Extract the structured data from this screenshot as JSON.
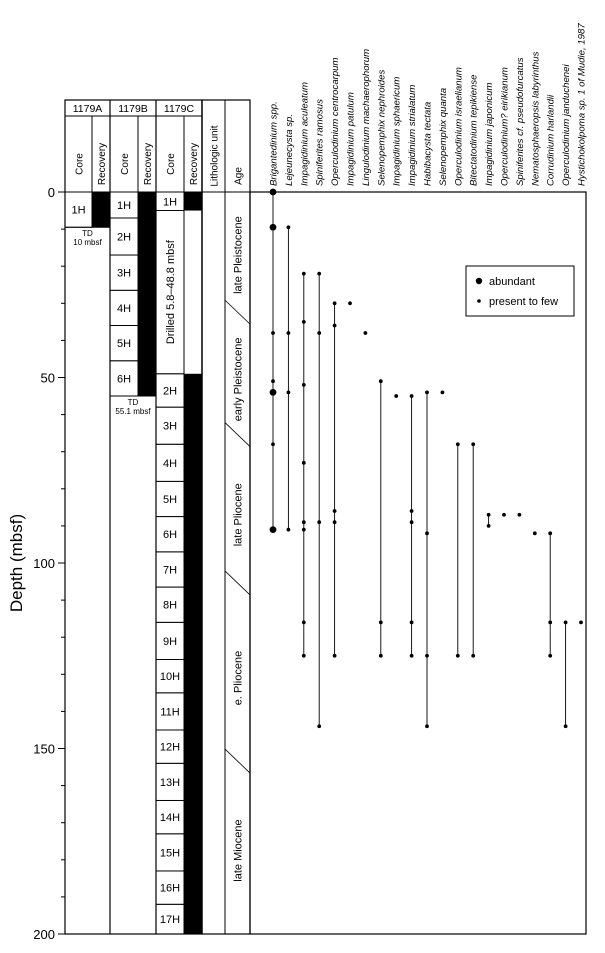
{
  "y_axis": {
    "label": "Depth (mbsf)",
    "ticks": [
      "0",
      "50",
      "100",
      "150",
      "200"
    ],
    "range": [
      0,
      200
    ]
  },
  "holes": {
    "a": {
      "name": "1179A",
      "core_header": "Core",
      "recovery_header": "Recovery",
      "cores": [
        {
          "label": "1H",
          "top": 0,
          "bottom": 9.5
        }
      ],
      "recovery": [
        {
          "top": 0,
          "bottom": 9.5
        }
      ],
      "td_label": "TD",
      "td_depth_label": "10 mbsf",
      "td": 9.5
    },
    "b": {
      "name": "1179B",
      "core_header": "Core",
      "recovery_header": "Recovery",
      "cores": [
        {
          "label": "1H",
          "top": 0,
          "bottom": 7
        },
        {
          "label": "2H",
          "top": 7,
          "bottom": 17
        },
        {
          "label": "3H",
          "top": 17,
          "bottom": 26.5
        },
        {
          "label": "4H",
          "top": 26.5,
          "bottom": 36
        },
        {
          "label": "5H",
          "top": 36,
          "bottom": 45.5
        },
        {
          "label": "6H",
          "top": 45.5,
          "bottom": 55
        }
      ],
      "recovery": [
        {
          "top": 0,
          "bottom": 55
        }
      ],
      "td_label": "TD",
      "td_depth_label": "55.1 mbsf",
      "td": 55
    },
    "c": {
      "name": "1179C",
      "core_header": "Core",
      "recovery_header": "Recovery",
      "drilled_label": "Drilled 5.8–48.8 mbsf",
      "cores": [
        {
          "label": "1H",
          "top": 0,
          "bottom": 5
        },
        {
          "label": "2H",
          "top": 49,
          "bottom": 58
        },
        {
          "label": "3H",
          "top": 58,
          "bottom": 68
        },
        {
          "label": "4H",
          "top": 68,
          "bottom": 78
        },
        {
          "label": "5H",
          "top": 78,
          "bottom": 87.5
        },
        {
          "label": "6H",
          "top": 87.5,
          "bottom": 97
        },
        {
          "label": "7H",
          "top": 97,
          "bottom": 106.5
        },
        {
          "label": "8H",
          "top": 106.5,
          "bottom": 116
        },
        {
          "label": "9H",
          "top": 116,
          "bottom": 126
        },
        {
          "label": "10H",
          "top": 126,
          "bottom": 135
        },
        {
          "label": "11H",
          "top": 135,
          "bottom": 145
        },
        {
          "label": "12H",
          "top": 145,
          "bottom": 154
        },
        {
          "label": "13H",
          "top": 154,
          "bottom": 164
        },
        {
          "label": "14H",
          "top": 164,
          "bottom": 173
        },
        {
          "label": "15H",
          "top": 173,
          "bottom": 183
        },
        {
          "label": "16H",
          "top": 183,
          "bottom": 192
        },
        {
          "label": "17H",
          "top": 192,
          "bottom": 200
        }
      ],
      "recovery": [
        {
          "top": 0,
          "bottom": 5
        },
        {
          "top": 49,
          "bottom": 200
        }
      ]
    }
  },
  "lithologic_unit": {
    "header": "Lithologic unit"
  },
  "age_column": {
    "header": "Age",
    "ages": [
      {
        "label": "late Pleistocene",
        "top": 0,
        "bottom": 34
      },
      {
        "label": "early Pleistocene",
        "top": 34,
        "bottom": 67
      },
      {
        "label": "late Pliocene",
        "top": 67,
        "bottom": 107
      },
      {
        "label": "e. Pliocene",
        "top": 107,
        "bottom": 155
      },
      {
        "label": "late Miocene",
        "top": 155,
        "bottom": 200
      }
    ]
  },
  "legend": {
    "abundant": "abundant",
    "present": "present to few"
  },
  "chart_data": {
    "type": "range-chart",
    "xlabel": "",
    "ylabel": "Depth (mbsf)",
    "ylim": [
      200,
      0
    ],
    "abundance_levels": [
      "abundant",
      "present to few"
    ],
    "taxa": [
      {
        "name": "Brigantedinium spp.",
        "points": [
          [
            0,
            "abundant"
          ],
          [
            9.5,
            "abundant"
          ],
          [
            38,
            "present to few"
          ],
          [
            51,
            "present to few"
          ],
          [
            54,
            "abundant"
          ],
          [
            68,
            "present to few"
          ],
          [
            91,
            "abundant"
          ]
        ]
      },
      {
        "name": "Lejeunecysta sp.",
        "points": [
          [
            9.5,
            "present to few"
          ],
          [
            38,
            "present to few"
          ],
          [
            54,
            "present to few"
          ],
          [
            91,
            "present to few"
          ]
        ]
      },
      {
        "name": "Impagidinium aculeatum",
        "points": [
          [
            22,
            "present to few"
          ],
          [
            35,
            "present to few"
          ],
          [
            52,
            "present to few"
          ],
          [
            73,
            "present to few"
          ],
          [
            89,
            "present to few"
          ],
          [
            91,
            "present to few"
          ],
          [
            116,
            "present to few"
          ],
          [
            125,
            "present to few"
          ]
        ]
      },
      {
        "name": "Spiniferites ramosus",
        "points": [
          [
            22,
            "present to few"
          ],
          [
            38,
            "present to few"
          ],
          [
            89,
            "present to few"
          ],
          [
            144,
            "present to few"
          ]
        ]
      },
      {
        "name": "Operculodinium centrocarpum",
        "points": [
          [
            30,
            "present to few"
          ],
          [
            36,
            "present to few"
          ],
          [
            86,
            "present to few"
          ],
          [
            89,
            "present to few"
          ],
          [
            125,
            "present to few"
          ]
        ]
      },
      {
        "name": "Impagidinium patulum",
        "points": [
          [
            30,
            "present to few"
          ]
        ]
      },
      {
        "name": "Lingulodinium machaerophorum",
        "points": [
          [
            38,
            "present to few"
          ]
        ]
      },
      {
        "name": "Selenopemphix nephroides",
        "points": [
          [
            51,
            "present to few"
          ],
          [
            116,
            "present to few"
          ],
          [
            125,
            "present to few"
          ]
        ]
      },
      {
        "name": "Impagidinium sphaericum",
        "points": [
          [
            55,
            "present to few"
          ]
        ]
      },
      {
        "name": "Impagidinium strialatum",
        "points": [
          [
            55,
            "present to few"
          ],
          [
            86,
            "present to few"
          ],
          [
            89,
            "present to few"
          ],
          [
            116,
            "present to few"
          ],
          [
            125,
            "present to few"
          ]
        ]
      },
      {
        "name": "Habibacysta tectata",
        "points": [
          [
            54,
            "present to few"
          ],
          [
            92,
            "present to few"
          ],
          [
            125,
            "present to few"
          ],
          [
            144,
            "present to few"
          ]
        ]
      },
      {
        "name": "Selenopemphix quanta",
        "points": [
          [
            54,
            "present to few"
          ]
        ]
      },
      {
        "name": "Operculodinium israelianum",
        "points": [
          [
            68,
            "present to few"
          ],
          [
            125,
            "present to few"
          ]
        ]
      },
      {
        "name": "Bitectatodinium tepikiense",
        "points": [
          [
            68,
            "present to few"
          ],
          [
            125,
            "present to few"
          ]
        ]
      },
      {
        "name": "Impagidinium japonicum",
        "points": [
          [
            87,
            "present to few"
          ],
          [
            90,
            "present to few"
          ]
        ]
      },
      {
        "name": "Operculodinium? eirikianum",
        "points": [
          [
            87,
            "present to few"
          ]
        ]
      },
      {
        "name": "Spiniferites cf. pseudofurcatus",
        "points": [
          [
            87,
            "present to few"
          ]
        ]
      },
      {
        "name": "Nematosphaeropsis labyrinthus",
        "points": [
          [
            92,
            "present to few"
          ]
        ]
      },
      {
        "name": "Corrudinium harlandii",
        "points": [
          [
            92,
            "present to few"
          ],
          [
            116,
            "present to few"
          ],
          [
            125,
            "present to few"
          ]
        ]
      },
      {
        "name": "Operculodinium janduchenei",
        "points": [
          [
            116,
            "present to few"
          ],
          [
            144,
            "present to few"
          ]
        ]
      },
      {
        "name": "Hystichokolpoma sp. 1 of Mudie, 1987",
        "points": [
          [
            116,
            "present to few"
          ]
        ]
      }
    ]
  }
}
